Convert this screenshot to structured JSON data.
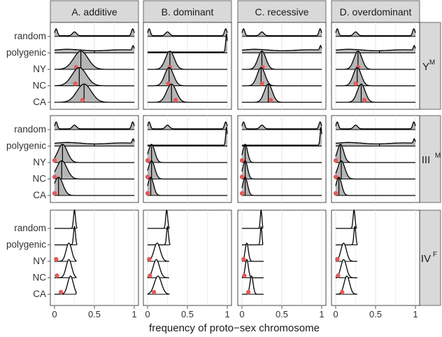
{
  "chart_data": {
    "type": "ridgeline",
    "xlabel": "frequency of proto−sex chromosome",
    "xlim": [
      0,
      1
    ],
    "x_ticks": [
      0,
      0.5,
      1
    ],
    "x_tick_labels": [
      "0",
      "0.5",
      "1"
    ],
    "columns": [
      "A. additive",
      "B. dominant",
      "C. recessive",
      "D. overdominant"
    ],
    "rows": [
      {
        "base": "Y",
        "sup": "M"
      },
      {
        "base": "III",
        "sup": "M"
      },
      {
        "base": "IV",
        "sup": "F"
      }
    ],
    "ridge_labels": [
      "random",
      "polygenic",
      "NY",
      "NC",
      "CA"
    ],
    "colors": {
      "fill": "#b5b5b5",
      "line": "#000000",
      "observed": "#e05a5a",
      "strip": "#d9d9d9",
      "grid": "#e6e6e6"
    },
    "panels": [
      [
        {
          "random": {
            "type": "u",
            "peak": 0.25
          },
          "polygenic": {
            "type": "poly",
            "median": 0.5
          },
          "NY": {
            "type": "g",
            "mu": 0.33,
            "sd": 0.09,
            "median": 0.33,
            "obs": 0.27
          },
          "NC": {
            "type": "g",
            "mu": 0.31,
            "sd": 0.09,
            "median": 0.31,
            "obs": 0.26
          },
          "CA": {
            "type": "g",
            "mu": 0.37,
            "sd": 0.09,
            "median": 0.37,
            "obs": 0.35
          }
        },
        {
          "random": {
            "type": "u",
            "peak": 0.25
          },
          "polygenic": {
            "type": "spike"
          },
          "NY": {
            "type": "g",
            "mu": 0.28,
            "sd": 0.055,
            "median": 0.28,
            "obs": 0.28
          },
          "NC": {
            "type": "g",
            "mu": 0.27,
            "sd": 0.055,
            "median": 0.27,
            "obs": 0.26
          },
          "CA": {
            "type": "g",
            "mu": 0.3,
            "sd": 0.06,
            "median": 0.3,
            "obs": 0.35
          }
        },
        {
          "random": {
            "type": "u",
            "peak": 0.25
          },
          "polygenic": {
            "type": "poly",
            "median": null
          },
          "NY": {
            "type": "g",
            "mu": 0.25,
            "sd": 0.05,
            "median": 0.25,
            "obs": 0.26
          },
          "NC": {
            "type": "g",
            "mu": 0.24,
            "sd": 0.05,
            "median": 0.24,
            "obs": 0.25
          },
          "CA": {
            "type": "g",
            "mu": 0.33,
            "sd": 0.05,
            "median": 0.33,
            "obs": 0.36
          }
        },
        {
          "random": {
            "type": "u",
            "peak": 0.25
          },
          "polygenic": {
            "type": "poly",
            "median": 0.55
          },
          "NY": {
            "type": "g",
            "mu": 0.28,
            "sd": 0.05,
            "median": 0.28,
            "obs": 0.28
          },
          "NC": {
            "type": "g",
            "mu": 0.27,
            "sd": 0.05,
            "median": 0.27,
            "obs": 0.25
          },
          "CA": {
            "type": "g",
            "mu": 0.32,
            "sd": 0.05,
            "median": 0.32,
            "obs": 0.36
          }
        }
      ],
      [
        {
          "random": {
            "type": "u",
            "peak": 0.25
          },
          "polygenic": {
            "type": "poly",
            "median": 0.5
          },
          "NY": {
            "type": "g",
            "mu": 0.1,
            "sd": 0.06,
            "median": 0.1,
            "obs": 0.0
          },
          "NC": {
            "type": "g",
            "mu": 0.09,
            "sd": 0.065,
            "median": 0.09,
            "obs": 0.0
          },
          "CA": {
            "type": "g",
            "mu": 0.05,
            "sd": 0.055,
            "median": 0.05,
            "obs": 0.0
          }
        },
        {
          "random": {
            "type": "u",
            "peak": 0.25
          },
          "polygenic": {
            "type": "spike"
          },
          "NY": {
            "type": "g",
            "mu": 0.05,
            "sd": 0.04,
            "median": 0.05,
            "obs": 0.0
          },
          "NC": {
            "type": "g",
            "mu": 0.05,
            "sd": 0.04,
            "median": 0.05,
            "obs": 0.0
          },
          "CA": {
            "type": "g",
            "mu": 0.04,
            "sd": 0.035,
            "median": 0.04,
            "obs": 0.0
          }
        },
        {
          "random": {
            "type": "u",
            "peak": 0.25
          },
          "polygenic": {
            "type": "spike"
          },
          "NY": {
            "type": "g",
            "mu": 0.04,
            "sd": 0.03,
            "median": 0.04,
            "obs": 0.0
          },
          "NC": {
            "type": "g",
            "mu": 0.04,
            "sd": 0.03,
            "median": 0.04,
            "obs": 0.0
          },
          "CA": {
            "type": "g",
            "mu": 0.04,
            "sd": 0.03,
            "median": 0.04,
            "obs": 0.0
          }
        },
        {
          "random": {
            "type": "u",
            "peak": 0.25
          },
          "polygenic": {
            "type": "poly",
            "median": 0.55
          },
          "NY": {
            "type": "g",
            "mu": 0.06,
            "sd": 0.04,
            "median": 0.06,
            "obs": 0.0
          },
          "NC": {
            "type": "g",
            "mu": 0.07,
            "sd": 0.045,
            "median": 0.07,
            "obs": 0.0
          },
          "CA": {
            "type": "g",
            "mu": 0.04,
            "sd": 0.035,
            "median": 0.04,
            "obs": 0.0
          }
        }
      ],
      [
        {
          "random": {
            "type": "n",
            "mu": 0.25,
            "sd": 0.012,
            "cut": 0.28
          },
          "polygenic": {
            "type": "n",
            "mu": 0.25,
            "sd": 0.012,
            "cut": 0.28
          },
          "NY": {
            "type": "n",
            "mu": 0.18,
            "sd": 0.035,
            "cut": 0.27,
            "obs": 0.02
          },
          "NC": {
            "type": "n",
            "mu": 0.18,
            "sd": 0.035,
            "cut": 0.27,
            "obs": 0.03
          },
          "CA": {
            "type": "n",
            "mu": 0.2,
            "sd": 0.035,
            "cut": 0.27,
            "obs": 0.08
          }
        },
        {
          "random": {
            "type": "n",
            "mu": 0.24,
            "sd": 0.012,
            "cut": 0.27
          },
          "polygenic": {
            "type": "n",
            "mu": 0.25,
            "sd": 0.012,
            "cut": 0.28
          },
          "NY": {
            "type": "n",
            "mu": 0.12,
            "sd": 0.04,
            "cut": 0.27,
            "obs": 0.02
          },
          "NC": {
            "type": "n",
            "mu": 0.11,
            "sd": 0.04,
            "cut": 0.27,
            "obs": 0.03
          },
          "CA": {
            "type": "n",
            "mu": 0.13,
            "sd": 0.045,
            "cut": 0.27,
            "obs": 0.08
          }
        },
        {
          "random": {
            "type": "n",
            "mu": 0.24,
            "sd": 0.01,
            "cut": 0.26
          },
          "polygenic": {
            "type": "n",
            "mu": 0.24,
            "sd": 0.01,
            "cut": 0.26
          },
          "NY": {
            "type": "n",
            "mu": 0.06,
            "sd": 0.02,
            "cut": 0.27,
            "obs": 0.02
          },
          "NC": {
            "type": "n",
            "mu": 0.06,
            "sd": 0.02,
            "cut": 0.27,
            "obs": 0.03
          },
          "CA": {
            "type": "n",
            "mu": 0.12,
            "sd": 0.02,
            "cut": 0.27,
            "obs": 0.08
          }
        },
        {
          "random": {
            "type": "n",
            "mu": 0.23,
            "sd": 0.012,
            "cut": 0.26
          },
          "polygenic": {
            "type": "n",
            "mu": 0.24,
            "sd": 0.012,
            "cut": 0.27
          },
          "NY": {
            "type": "n",
            "mu": 0.1,
            "sd": 0.035,
            "cut": 0.27,
            "obs": 0.02
          },
          "NC": {
            "type": "n",
            "mu": 0.1,
            "sd": 0.035,
            "cut": 0.27,
            "obs": 0.03
          },
          "CA": {
            "type": "n",
            "mu": 0.14,
            "sd": 0.035,
            "cut": 0.27,
            "obs": 0.08
          }
        }
      ]
    ]
  }
}
